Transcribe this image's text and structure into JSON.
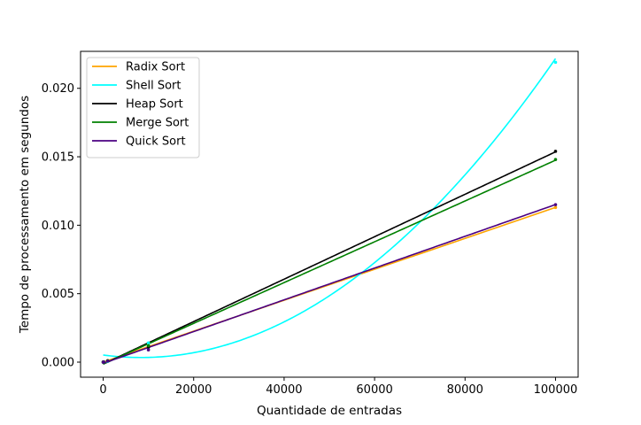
{
  "chart_data": {
    "type": "line",
    "title": "",
    "xlabel": "Quantidade de entradas",
    "ylabel": "Tempo de processamento em segundos",
    "xlim": [
      -5000,
      105000
    ],
    "ylim": [
      -0.0011,
      0.0227
    ],
    "xticks": [
      0,
      20000,
      40000,
      60000,
      80000,
      100000
    ],
    "xtick_labels": [
      "0",
      "20000",
      "40000",
      "60000",
      "80000",
      "100000"
    ],
    "yticks": [
      0.0,
      0.005,
      0.01,
      0.015,
      0.02
    ],
    "ytick_labels": [
      "0.000",
      "0.005",
      "0.010",
      "0.015",
      "0.020"
    ],
    "grid": false,
    "legend_position": "top-left",
    "x": [
      10,
      100,
      1000,
      10000,
      100000
    ],
    "series": [
      {
        "name": "Radix Sort",
        "color": "#ffa500",
        "fit": "linear",
        "values": [
          1e-05,
          2e-05,
          0.00012,
          0.00125,
          0.0113
        ]
      },
      {
        "name": "Shell Sort",
        "color": "#00ffff",
        "fit": "quadratic",
        "values": [
          0.0,
          1e-05,
          6e-05,
          0.0014,
          0.0219
        ]
      },
      {
        "name": "Heap Sort",
        "color": "#000000",
        "fit": "linear",
        "values": [
          0.0,
          1e-05,
          9e-05,
          0.0011,
          0.0154
        ]
      },
      {
        "name": "Merge Sort",
        "color": "#008000",
        "fit": "linear",
        "values": [
          1e-05,
          2e-05,
          0.0001,
          0.0012,
          0.0148
        ]
      },
      {
        "name": "Quick Sort",
        "color": "#4b0082",
        "fit": "linear",
        "values": [
          0.0,
          1e-05,
          8e-05,
          0.0009,
          0.0115
        ]
      }
    ],
    "fits": {
      "Radix Sort": [
        0.0,
        1.13e-07,
        0.0
      ],
      "Shell Sort": [
        0.00052,
        -4.35e-08,
        2.6e-12
      ],
      "Heap Sort": [
        -0.00014,
        1.55e-07,
        0.0
      ],
      "Merge Sort": [
        -0.00015,
        1.49e-07,
        0.0
      ],
      "Quick Sort": [
        -9e-05,
        1.16e-07,
        0.0
      ]
    }
  }
}
